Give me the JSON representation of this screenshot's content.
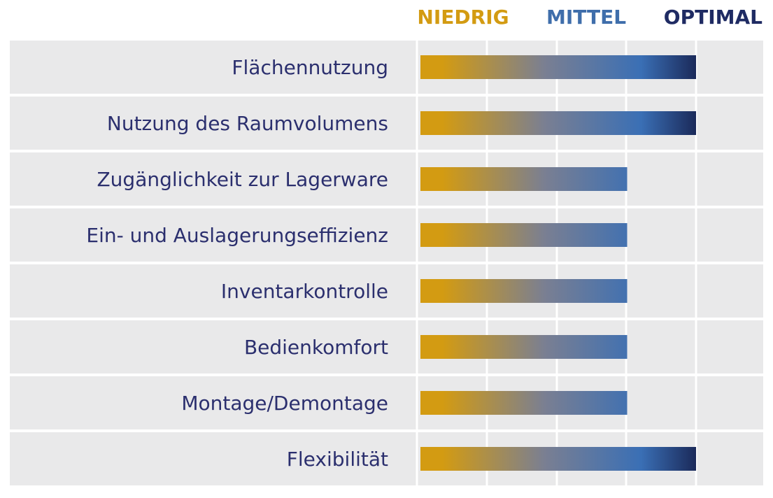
{
  "colors": {
    "background": "#ffffff",
    "panel": "#e9e9ea",
    "grid": "#ffffff",
    "label": "#2b2f6e",
    "gradient_start": "#d39b12",
    "gradient_mid": "#7a7f92",
    "gradient_blue": "#3a6fb5",
    "gradient_end": "#1b2a5a"
  },
  "chart_data": {
    "type": "bar",
    "orientation": "horizontal",
    "title": "",
    "scale": {
      "min": 0,
      "max": 4,
      "legend_levels": [
        {
          "label": "NIEDRIG",
          "color": "#d39b12"
        },
        {
          "label": "MITTEL",
          "color": "#3f6eab"
        },
        {
          "label": "OPTIMAL",
          "color": "#1f2b63"
        }
      ]
    },
    "categories": [
      "Flächennutzung",
      "Nutzung des Raumvolumens",
      "Zugänglichkeit zur Lagerware",
      "Ein- und Auslagerungseffizienz",
      "Inventarkontrolle",
      "Bedienkomfort",
      "Montage/Demontage",
      "Flexibilität"
    ],
    "values": [
      4,
      4,
      3,
      3,
      3,
      3,
      3,
      4
    ],
    "grid": true,
    "legend": "top"
  }
}
